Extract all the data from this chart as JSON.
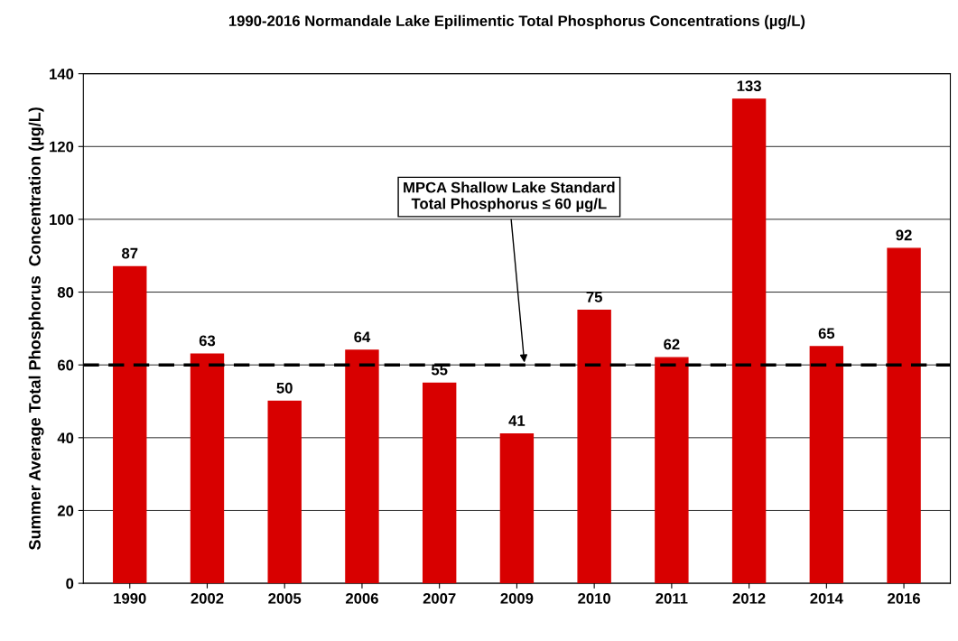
{
  "chart_data": {
    "type": "bar",
    "title": "1990-2016 Normandale Lake Epilimentic Total Phosphorus Concentrations (µg/L)",
    "ylabel": "Summer Average Total Phosphorus  Concentration (µg/L)",
    "categories": [
      "1990",
      "2002",
      "2005",
      "2006",
      "2007",
      "2009",
      "2010",
      "2011",
      "2012",
      "2014",
      "2016"
    ],
    "values": [
      87,
      63,
      50,
      64,
      55,
      41,
      75,
      62,
      133,
      65,
      92
    ],
    "color": "#d80000",
    "data_labels": true,
    "ylim": [
      0,
      140
    ],
    "yticks": [
      0,
      20,
      40,
      60,
      80,
      100,
      120,
      140
    ],
    "grid": "y",
    "ref_lines": [
      {
        "axis": "y",
        "value": 60,
        "label": "MPCA Shallow Lake Standard\nTotal Phosphorus ≤ 60 µg/L",
        "color": "#000000",
        "line_style": "dashed"
      }
    ]
  }
}
